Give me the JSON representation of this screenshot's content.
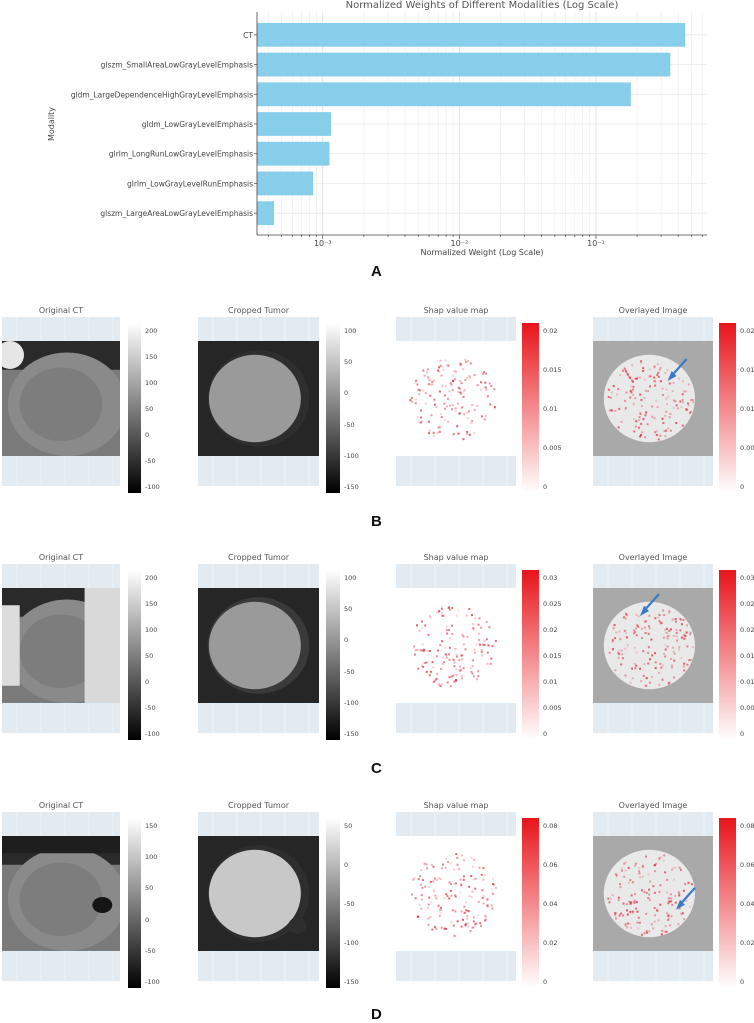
{
  "panel_labels": [
    "A",
    "B",
    "C",
    "D"
  ],
  "chart_data": {
    "type": "bar",
    "orientation": "horizontal",
    "title": "Normalized Weights of Different Modalities (Log Scale)",
    "xlabel": "Normalized Weight (Log Scale)",
    "ylabel": "Modality",
    "xscale": "log",
    "xlim": [
      0.00033,
      0.65
    ],
    "x_tick_values": [
      0.001,
      0.01,
      0.1
    ],
    "x_tick_labels": [
      "10⁻³",
      "10⁻²",
      "10⁻¹"
    ],
    "grid": true,
    "bar_color": "#87ceeb",
    "categories": [
      "CT",
      "glszm_SmallAreaLowGrayLevelEmphasis",
      "gldm_LargeDependenceHighGrayLevelEmphasis",
      "gldm_LowGrayLevelEmphasis",
      "glrlm_LongRunLowGrayLevelEmphasis",
      "glrlm_LowGrayLevelRunEmphasis",
      "glszm_LargeAreaLowGrayLevelEmphasis"
    ],
    "values": [
      0.45,
      0.35,
      0.18,
      0.00115,
      0.00112,
      0.00085,
      0.00044
    ]
  },
  "rows": [
    {
      "label": "B",
      "titles": [
        "Original CT",
        "Cropped Tumor",
        "Shap value map",
        "Overlayed Image"
      ],
      "ct_ticks": [
        "200",
        "150",
        "100",
        "50",
        "0",
        "-50",
        "-100"
      ],
      "crop_ticks": [
        "100",
        "50",
        "0",
        "-50",
        "-100",
        "-150"
      ],
      "shap_ticks": [
        "0.02",
        "0.015",
        "0.01",
        "0.005",
        "0"
      ],
      "overlay_ticks": [
        "0.02",
        "0.015",
        "0.01",
        "0.005",
        "0"
      ]
    },
    {
      "label": "C",
      "titles": [
        "Original CT",
        "Cropped Tumor",
        "Shap value map",
        "Overlayed Image"
      ],
      "ct_ticks": [
        "200",
        "150",
        "100",
        "50",
        "0",
        "-50",
        "-100"
      ],
      "crop_ticks": [
        "100",
        "50",
        "0",
        "-50",
        "-100",
        "-150"
      ],
      "shap_ticks": [
        "0.03",
        "0.025",
        "0.02",
        "0.015",
        "0.01",
        "0.005",
        "0"
      ],
      "overlay_ticks": [
        "0.03",
        "0.025",
        "0.02",
        "0.015",
        "0.01",
        "0.005",
        "0"
      ]
    },
    {
      "label": "D",
      "titles": [
        "Original CT",
        "Cropped Tumor",
        "Shap value map",
        "Overlayed Image"
      ],
      "ct_ticks": [
        "150",
        "100",
        "50",
        "0",
        "-50",
        "-100"
      ],
      "crop_ticks": [
        "50",
        "0",
        "-50",
        "-100",
        "-150"
      ],
      "shap_ticks": [
        "0.08",
        "0.06",
        "0.04",
        "0.02",
        "0"
      ],
      "overlay_ticks": [
        "0.08",
        "0.06",
        "0.04",
        "0.02",
        "0"
      ]
    }
  ]
}
